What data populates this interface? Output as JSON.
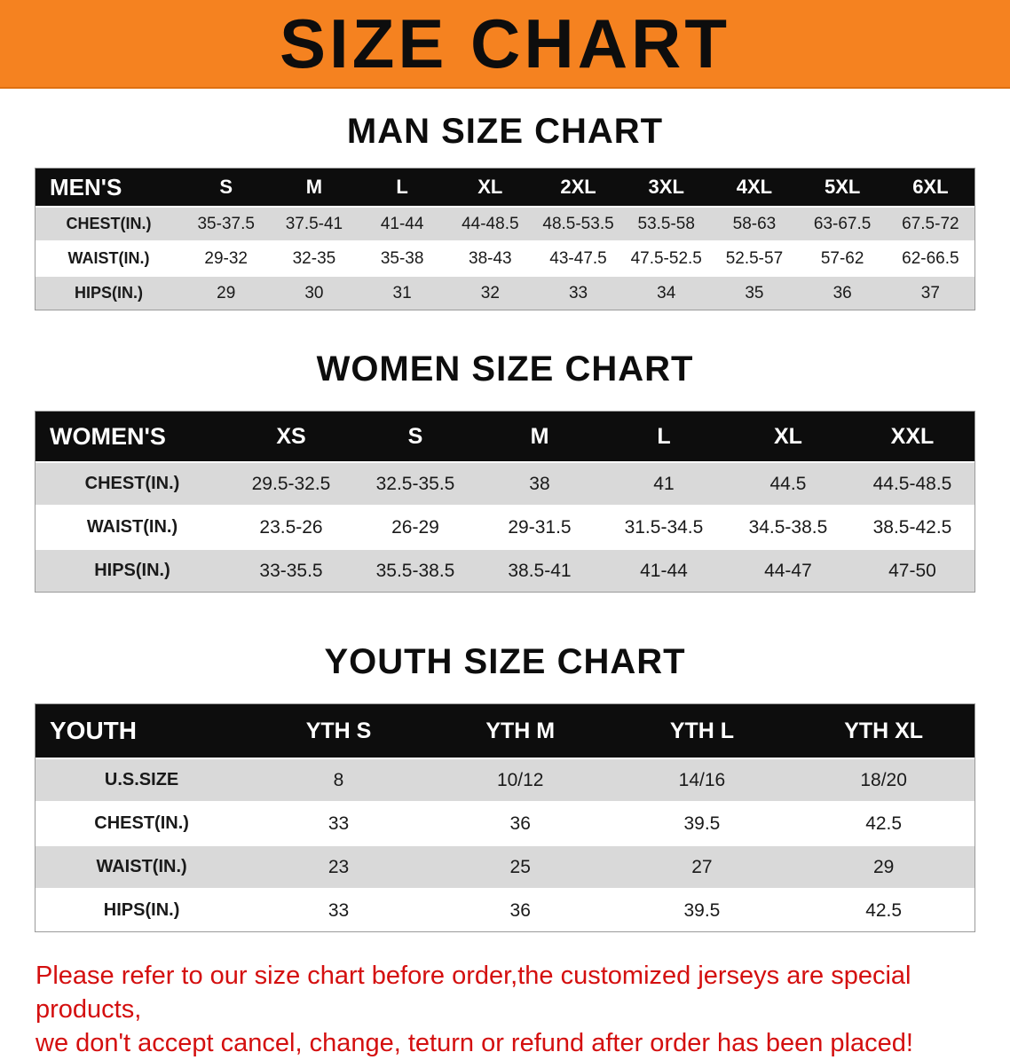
{
  "banner": {
    "title": "SIZE CHART"
  },
  "colors": {
    "banner_bg": "#F58220",
    "table_header_bg": "#0D0D0D",
    "row_gray": "#D9D9D9",
    "footer_red": "#D40F0F"
  },
  "sections": [
    {
      "id": "men",
      "heading": "MAN SIZE CHART",
      "table": {
        "header": [
          "MEN'S",
          "S",
          "M",
          "L",
          "XL",
          "2XL",
          "3XL",
          "4XL",
          "5XL",
          "6XL"
        ],
        "rows": [
          [
            "CHEST(IN.)",
            "35-37.5",
            "37.5-41",
            "41-44",
            "44-48.5",
            "48.5-53.5",
            "53.5-58",
            "58-63",
            "63-67.5",
            "67.5-72"
          ],
          [
            "WAIST(IN.)",
            "29-32",
            "32-35",
            "35-38",
            "38-43",
            "43-47.5",
            "47.5-52.5",
            "52.5-57",
            "57-62",
            "62-66.5"
          ],
          [
            "HIPS(IN.)",
            "29",
            "30",
            "31",
            "32",
            "33",
            "34",
            "35",
            "36",
            "37"
          ]
        ]
      }
    },
    {
      "id": "women",
      "heading": "WOMEN SIZE CHART",
      "table": {
        "header": [
          "WOMEN'S",
          "XS",
          "S",
          "M",
          "L",
          "XL",
          "XXL"
        ],
        "rows": [
          [
            "CHEST(IN.)",
            "29.5-32.5",
            "32.5-35.5",
            "38",
            "41",
            "44.5",
            "44.5-48.5"
          ],
          [
            "WAIST(IN.)",
            "23.5-26",
            "26-29",
            "29-31.5",
            "31.5-34.5",
            "34.5-38.5",
            "38.5-42.5"
          ],
          [
            "HIPS(IN.)",
            "33-35.5",
            "35.5-38.5",
            "38.5-41",
            "41-44",
            "44-47",
            "47-50"
          ]
        ]
      }
    },
    {
      "id": "youth",
      "heading": "YOUTH SIZE CHART",
      "table": {
        "header": [
          "YOUTH",
          "YTH S",
          "YTH M",
          "YTH L",
          "YTH XL"
        ],
        "rows": [
          [
            "U.S.SIZE",
            "8",
            "10/12",
            "14/16",
            "18/20"
          ],
          [
            "CHEST(IN.)",
            "33",
            "36",
            "39.5",
            "42.5"
          ],
          [
            "WAIST(IN.)",
            "23",
            "25",
            "27",
            "29"
          ],
          [
            "HIPS(IN.)",
            "33",
            "36",
            "39.5",
            "42.5"
          ]
        ]
      }
    }
  ],
  "footer": {
    "lines": [
      "Please refer to our size chart before order,the customized jerseys are special products,",
      "we don't accept cancel, change, teturn or refund after order has been placed!"
    ]
  }
}
